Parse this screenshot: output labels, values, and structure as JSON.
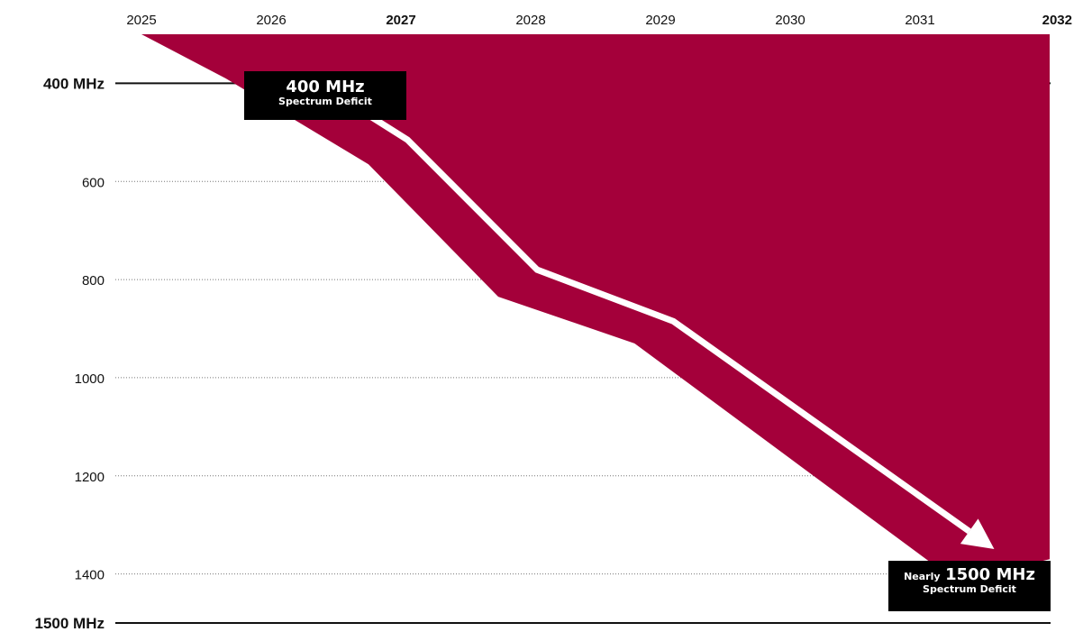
{
  "chart_data": {
    "type": "area",
    "x": [
      "2025",
      "2026",
      "2027",
      "2028",
      "2029",
      "2030",
      "2031",
      "2032"
    ],
    "x_bold": [
      "2027",
      "2032"
    ],
    "y_axis": {
      "inverted": true,
      "ylim": [
        300,
        1500
      ],
      "ticks": [
        {
          "value": 400,
          "label": "400 MHz",
          "emphasis": true
        },
        {
          "value": 600,
          "label": "600",
          "emphasis": false
        },
        {
          "value": 800,
          "label": "800",
          "emphasis": false
        },
        {
          "value": 1000,
          "label": "1000",
          "emphasis": false
        },
        {
          "value": 1200,
          "label": "1200",
          "emphasis": false
        },
        {
          "value": 1400,
          "label": "1400",
          "emphasis": false
        },
        {
          "value": 1500,
          "label": "1500 MHz",
          "emphasis": true
        }
      ]
    },
    "deficit_boundary": [
      {
        "x": 2025.0,
        "y": 300
      },
      {
        "x": 2025.65,
        "y": 390
      },
      {
        "x": 2026.75,
        "y": 565
      },
      {
        "x": 2027.75,
        "y": 835
      },
      {
        "x": 2028.8,
        "y": 930
      },
      {
        "x": 2031.1,
        "y": 1380
      },
      {
        "x": 2031.6,
        "y": 1395
      },
      {
        "x": 2032.0,
        "y": 1370
      }
    ],
    "trend_arrow": [
      {
        "x": 2026.75,
        "y": 465
      },
      {
        "x": 2027.05,
        "y": 515
      },
      {
        "x": 2028.05,
        "y": 780
      },
      {
        "x": 2029.1,
        "y": 885
      },
      {
        "x": 2031.55,
        "y": 1345
      }
    ],
    "annotations": {
      "start": {
        "value": "400 MHz",
        "caption": "Spectrum Deficit"
      },
      "end": {
        "prefix": "Nearly",
        "value": "1500 MHz",
        "caption": "Spectrum Deficit"
      }
    },
    "colors": {
      "area": "#a4003a",
      "arrow": "#ffffff",
      "callout_bg": "#000000",
      "callout_text": "#ffffff"
    },
    "grid": "dotted horizontal"
  }
}
